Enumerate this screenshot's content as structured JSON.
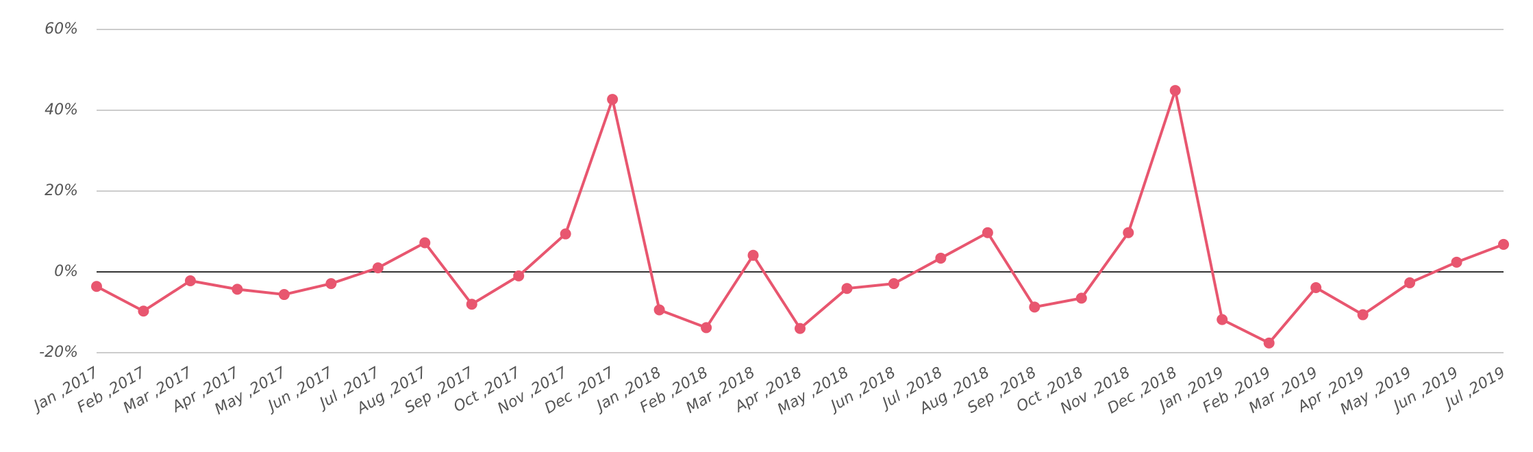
{
  "chart_data": {
    "type": "line",
    "categories": [
      "Jan ,2017",
      "Feb ,2017",
      "Mar ,2017",
      "Apr ,2017",
      "May ,2017",
      "Jun ,2017",
      "Jul ,2017",
      "Aug ,2017",
      "Sep ,2017",
      "Oct ,2017",
      "Nov ,2017",
      "Dec ,2017",
      "Jan ,2018",
      "Feb ,2018",
      "Mar ,2018",
      "Apr ,2018",
      "May ,2018",
      "Jun ,2018",
      "Jul ,2018",
      "Aug ,2018",
      "Sep ,2018",
      "Oct ,2018",
      "Nov ,2018",
      "Dec ,2018",
      "Jan ,2019",
      "Feb ,2019",
      "Mar ,2019",
      "Apr ,2019",
      "May ,2019",
      "Jun ,2019",
      "Jul ,2019"
    ],
    "values": [
      -3.6,
      -9.7,
      -2.2,
      -4.3,
      -5.6,
      -2.9,
      1.0,
      7.2,
      -8.0,
      -1.0,
      9.4,
      42.7,
      -9.4,
      -13.8,
      4.1,
      -14.0,
      -4.1,
      -2.9,
      3.4,
      9.7,
      -8.7,
      -6.5,
      9.7,
      44.9,
      -11.8,
      -17.6,
      -3.9,
      -10.6,
      -2.7,
      2.4,
      6.8
    ],
    "color": "#e8566f",
    "ylim": [
      -20,
      60
    ],
    "yticks": [
      {
        "value": -20,
        "label": "-20%"
      },
      {
        "value": 0,
        "label": "0%"
      },
      {
        "value": 20,
        "label": "20%"
      },
      {
        "value": 40,
        "label": "40%"
      },
      {
        "value": 60,
        "label": "60%"
      }
    ],
    "grid": true
  }
}
